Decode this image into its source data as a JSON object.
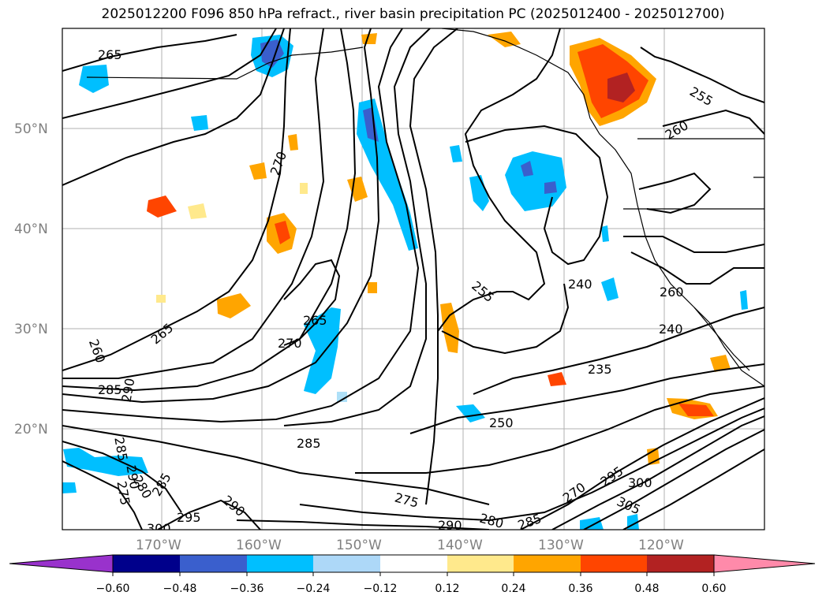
{
  "title": "2025012200 F096 850 hPa refract., river basin precipitation PC (2025012400 - 2025012700)",
  "map": {
    "lat_ticks": [
      "50°N",
      "40°N",
      "30°N",
      "20°N"
    ],
    "lon_ticks": [
      "170°W",
      "160°W",
      "150°W",
      "140°W",
      "130°W",
      "120°W"
    ],
    "contour_labels": [
      "265",
      "270",
      "260",
      "265",
      "265",
      "270",
      "255",
      "240",
      "260",
      "240",
      "235",
      "250",
      "255",
      "260",
      "285",
      "290",
      "285",
      "285",
      "290",
      "280",
      "275",
      "285",
      "300",
      "295",
      "290",
      "275",
      "290",
      "280",
      "285",
      "270",
      "295",
      "300",
      "305"
    ],
    "shading_colors": {
      "negative_strong": "#4a55d4",
      "negative_mid": "#00bfff",
      "negative_weak": "#aee0f8",
      "positive_weak": "#ffe98c",
      "positive_mid": "#ffa500",
      "positive_strong": "#ff4500",
      "positive_max": "#b22222"
    }
  },
  "colorbar": {
    "tick_labels": [
      "−0.60",
      "−0.48",
      "−0.36",
      "−0.24",
      "−0.12",
      "0.12",
      "0.24",
      "0.36",
      "0.48",
      "0.60"
    ],
    "colors": [
      "#9932cc",
      "#00008b",
      "#3a5fcd",
      "#00bfff",
      "#add8f8",
      "#ffffff",
      "#ffe98c",
      "#ffa500",
      "#ff4500",
      "#b22222",
      "#ff8aaa"
    ]
  }
}
